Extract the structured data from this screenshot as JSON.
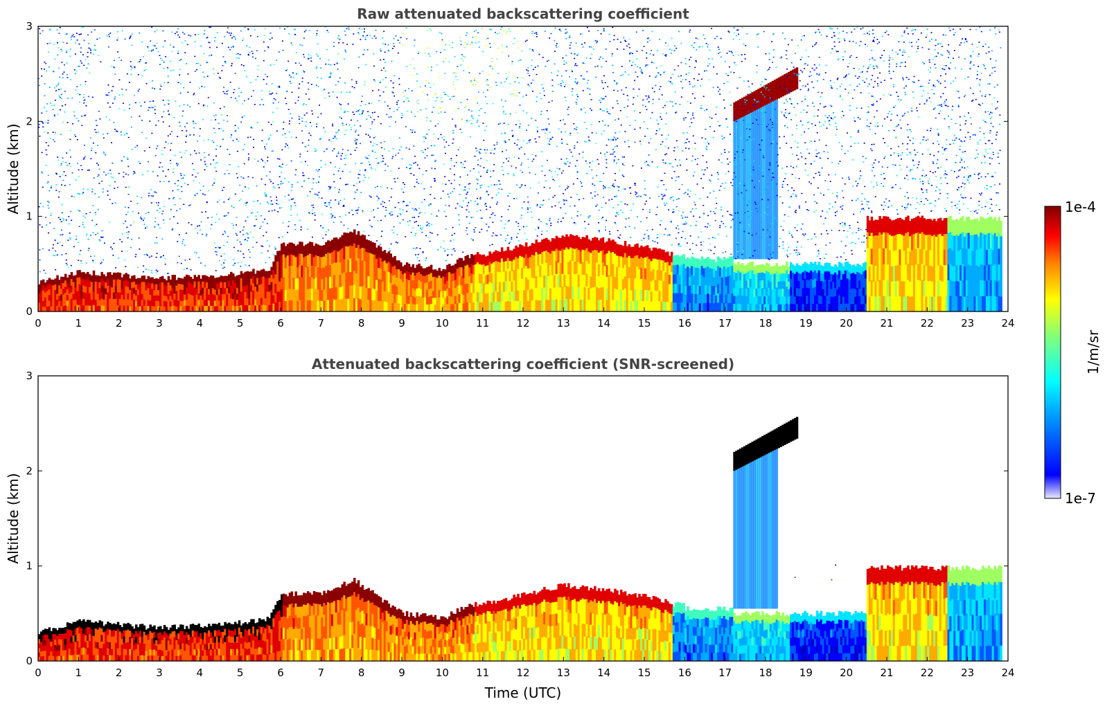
{
  "chart_data": [
    {
      "type": "heatmap",
      "title": "Raw attenuated backscattering coefficient",
      "xlabel": "",
      "ylabel": "Altitude (km)",
      "xlim": [
        0,
        24
      ],
      "ylim": [
        0,
        3
      ],
      "x_ticks": [
        "0",
        "1",
        "2",
        "3",
        "4",
        "5",
        "6",
        "7",
        "8",
        "9",
        "10",
        "11",
        "12",
        "13",
        "14",
        "15",
        "16",
        "17",
        "18",
        "19",
        "20",
        "21",
        "22",
        "23",
        "24"
      ],
      "y_ticks": [
        "0",
        "1",
        "2",
        "3"
      ],
      "features": [
        {
          "kind": "boundary-layer-top",
          "time": [
            0,
            1,
            2,
            3,
            4,
            5,
            5.7,
            6,
            7,
            7.8,
            9,
            10,
            10.7,
            11,
            12,
            13,
            14,
            15,
            15.7
          ],
          "altitude": [
            0.3,
            0.42,
            0.38,
            0.35,
            0.37,
            0.4,
            0.45,
            0.7,
            0.72,
            0.85,
            0.5,
            0.45,
            0.6,
            0.6,
            0.7,
            0.8,
            0.75,
            0.68,
            0.6
          ]
        },
        {
          "kind": "elevated-cloud",
          "time": [
            17.2,
            18.8
          ],
          "altitude_bottom": [
            2.0,
            2.35
          ],
          "altitude_top": [
            2.2,
            2.58
          ]
        },
        {
          "kind": "cloud-top",
          "time": [
            20.5,
            23.8
          ],
          "altitude": [
            0.95,
            1.0
          ]
        }
      ]
    },
    {
      "type": "heatmap",
      "title": "Attenuated backscattering coefficient (SNR-screened)",
      "xlabel": "Time (UTC)",
      "ylabel": "Altitude (km)",
      "xlim": [
        0,
        24
      ],
      "ylim": [
        0,
        3
      ],
      "x_ticks": [
        "0",
        "1",
        "2",
        "3",
        "4",
        "5",
        "6",
        "7",
        "8",
        "9",
        "10",
        "11",
        "12",
        "13",
        "14",
        "15",
        "16",
        "17",
        "18",
        "19",
        "20",
        "21",
        "22",
        "23",
        "24"
      ],
      "y_ticks": [
        "0",
        "1",
        "2",
        "3"
      ],
      "features": [
        {
          "kind": "screened-above-signal",
          "note": ""
        }
      ]
    }
  ],
  "colorbar": {
    "label": "1/m/sr",
    "max_label": "1e-4",
    "min_label": "1e-7",
    "colormap": "jet",
    "stops": [
      "#eaeaff",
      "#0000ff",
      "#00aaff",
      "#00ffff",
      "#7fff7f",
      "#ffff00",
      "#ff8800",
      "#ff0000",
      "#7f0000"
    ],
    "saturated_color": "#000000"
  }
}
